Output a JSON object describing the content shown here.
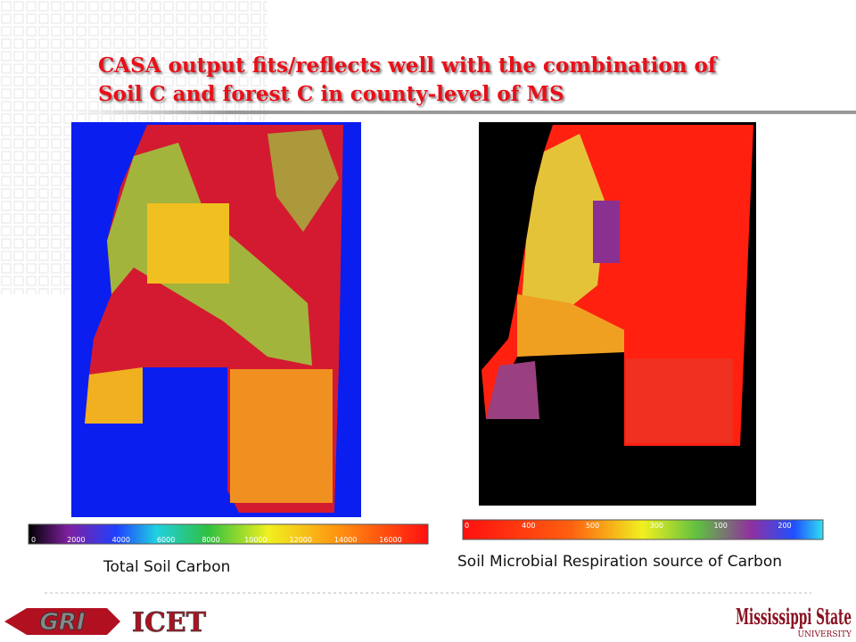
{
  "header": {
    "title_line1": "CASA output fits/reflects well with the combination of",
    "title_line2": "Soil C and forest C in county-level of MS"
  },
  "left_panel": {
    "colorbar_labels": [
      "0",
      "2000",
      "4000",
      "6000",
      "8000",
      "10000",
      "12000",
      "14000",
      "16000"
    ],
    "caption": "Total Soil Carbon"
  },
  "right_panel": {
    "colorbar_labels": [
      "0",
      "400",
      "500",
      "300",
      "100",
      "200"
    ],
    "caption": "Soil Microbial Respiration source of Carbon"
  },
  "footer": {
    "logo_left": "GRI",
    "logo_middle": "ICET",
    "logo_right": "Mississippi State",
    "logo_right_sub": "UNIVERSITY"
  }
}
